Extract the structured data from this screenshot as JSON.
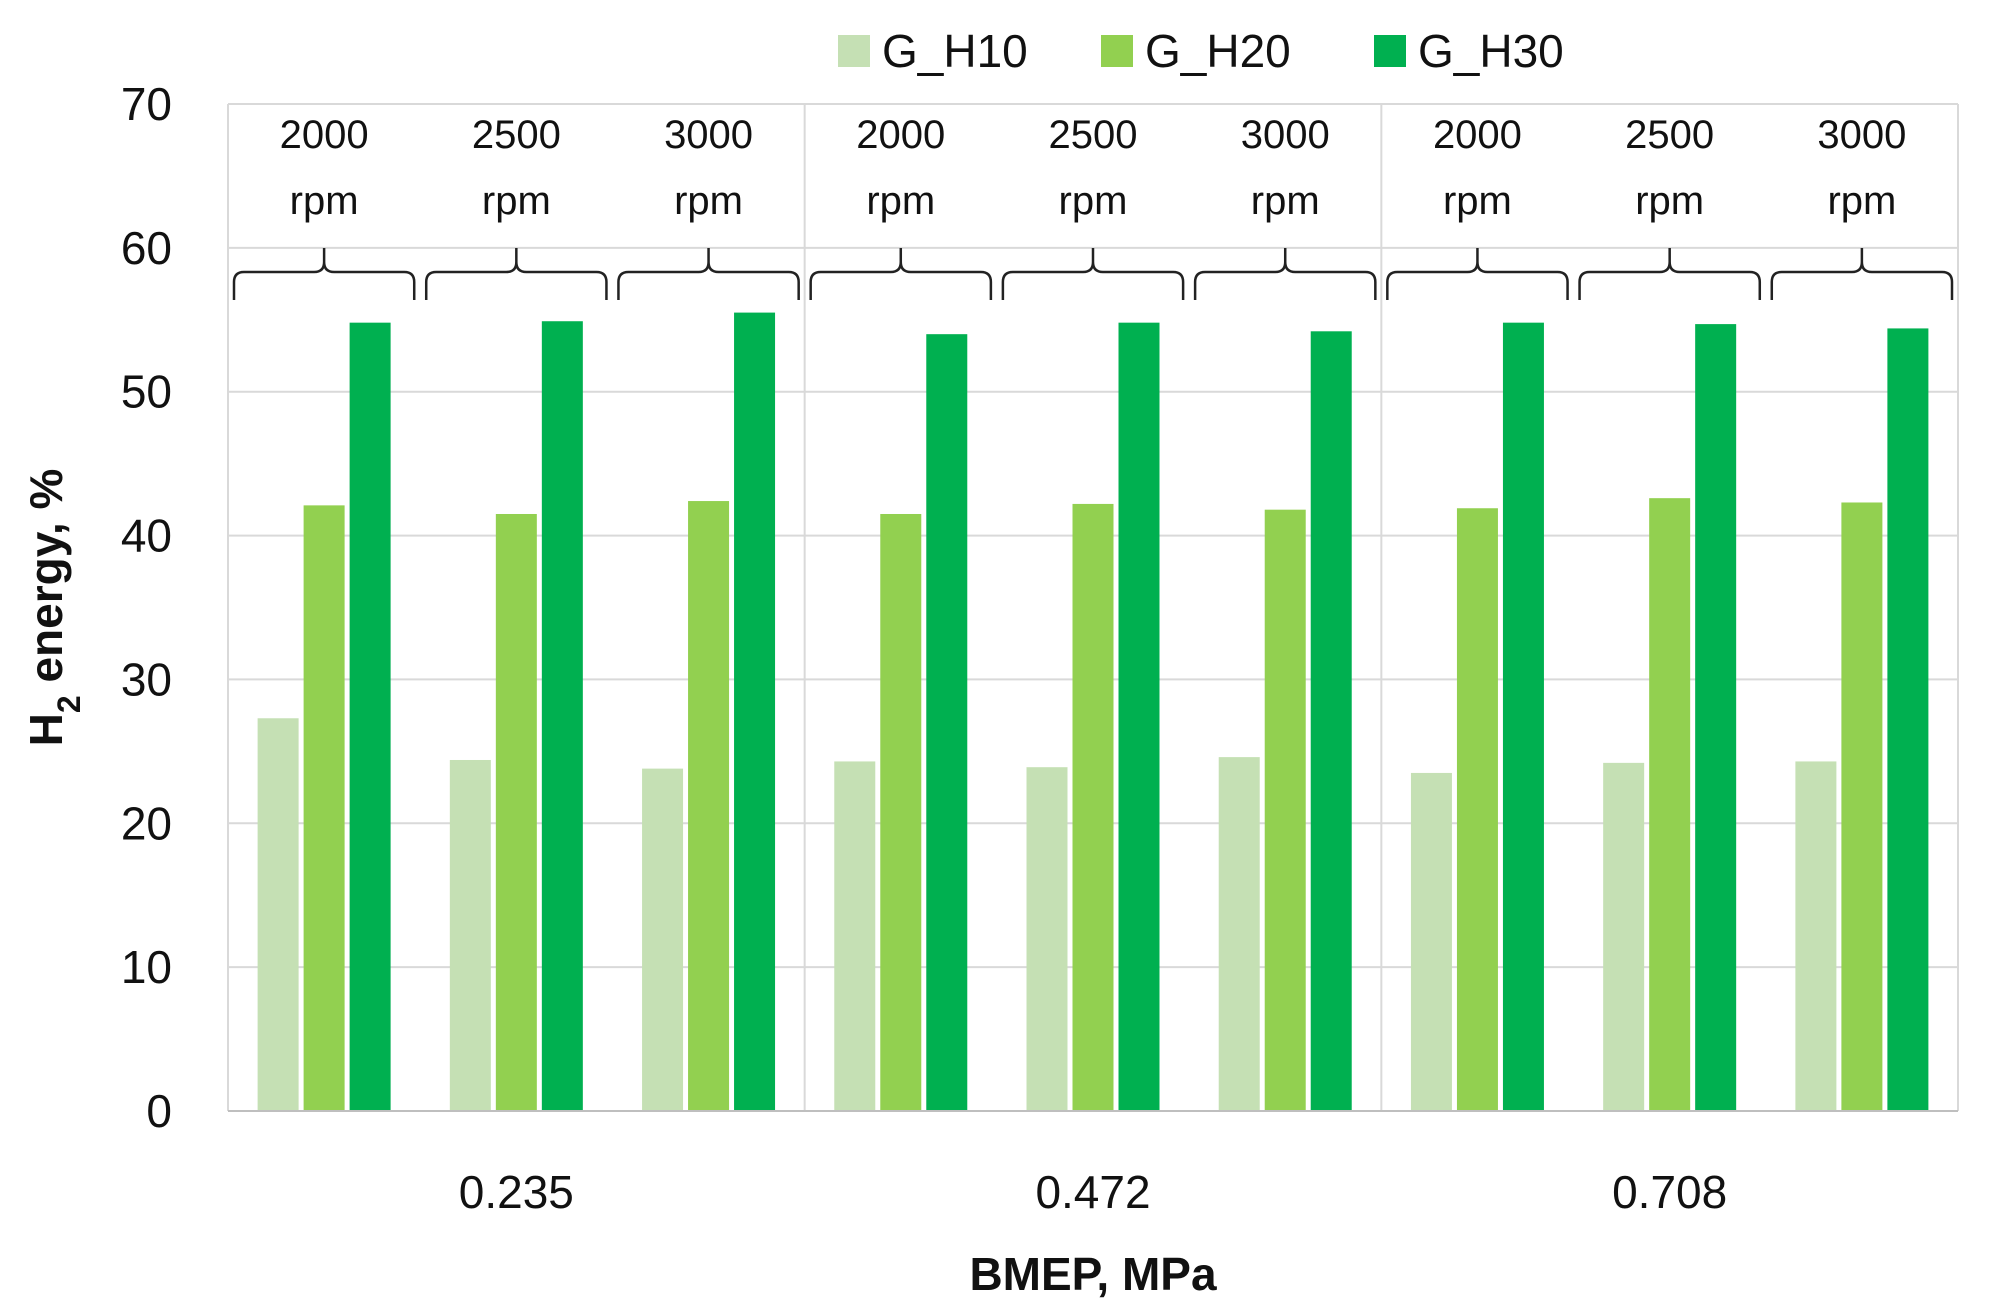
{
  "chart_data": {
    "type": "bar",
    "title": "",
    "xlabel": "BMEP, MPa",
    "ylabel_main": "H",
    "ylabel_sub": "2",
    "ylabel_rest": " energy, %",
    "ylim": [
      0,
      70
    ],
    "yticks": [
      0,
      10,
      20,
      30,
      40,
      50,
      60,
      70
    ],
    "groups": [
      "0.235",
      "0.472",
      "0.708"
    ],
    "subgroups": [
      {
        "value": "2000",
        "unit": "rpm"
      },
      {
        "value": "2500",
        "unit": "rpm"
      },
      {
        "value": "3000",
        "unit": "rpm"
      }
    ],
    "legend_position": "top",
    "series": [
      {
        "name": "G_H10",
        "color": "#c5e0b4",
        "values": [
          27.3,
          24.4,
          23.8,
          24.3,
          23.9,
          24.6,
          23.5,
          24.2,
          24.3
        ]
      },
      {
        "name": "G_H20",
        "color": "#92d050",
        "values": [
          42.1,
          41.5,
          42.4,
          41.5,
          42.2,
          41.8,
          41.9,
          42.6,
          42.3
        ]
      },
      {
        "name": "G_H30",
        "color": "#00b050",
        "values": [
          54.8,
          54.9,
          55.5,
          54.0,
          54.8,
          54.2,
          54.8,
          54.7,
          54.4
        ]
      }
    ]
  }
}
